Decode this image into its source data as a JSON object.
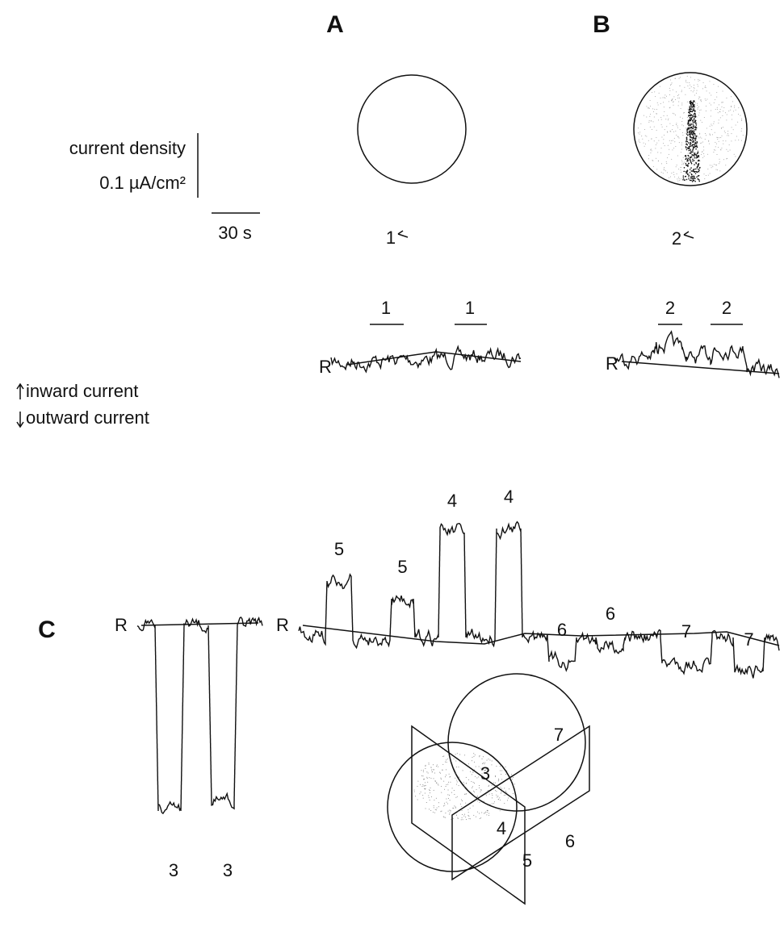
{
  "scale_bar": {
    "current_label": "current density",
    "current_value": "0.1 µA/cm²",
    "time_value": "30 s"
  },
  "legend": {
    "inward": "inward current",
    "outward": "outward current"
  },
  "panel_a": {
    "label": "A",
    "site": "1",
    "markers": [
      "1",
      "1"
    ],
    "reference": "R"
  },
  "panel_b": {
    "label": "B",
    "site": "2",
    "markers": [
      "2",
      "2"
    ],
    "reference": "R"
  },
  "panel_c": {
    "label": "C",
    "left_reference": "R",
    "left_markers": [
      "3",
      "3"
    ],
    "right_reference": "R",
    "right_markers": [
      "5",
      "5",
      "4",
      "4",
      "6",
      "6",
      "7",
      "7"
    ],
    "embryo_sites": [
      "7",
      "3",
      "4",
      "5",
      "6"
    ]
  }
}
